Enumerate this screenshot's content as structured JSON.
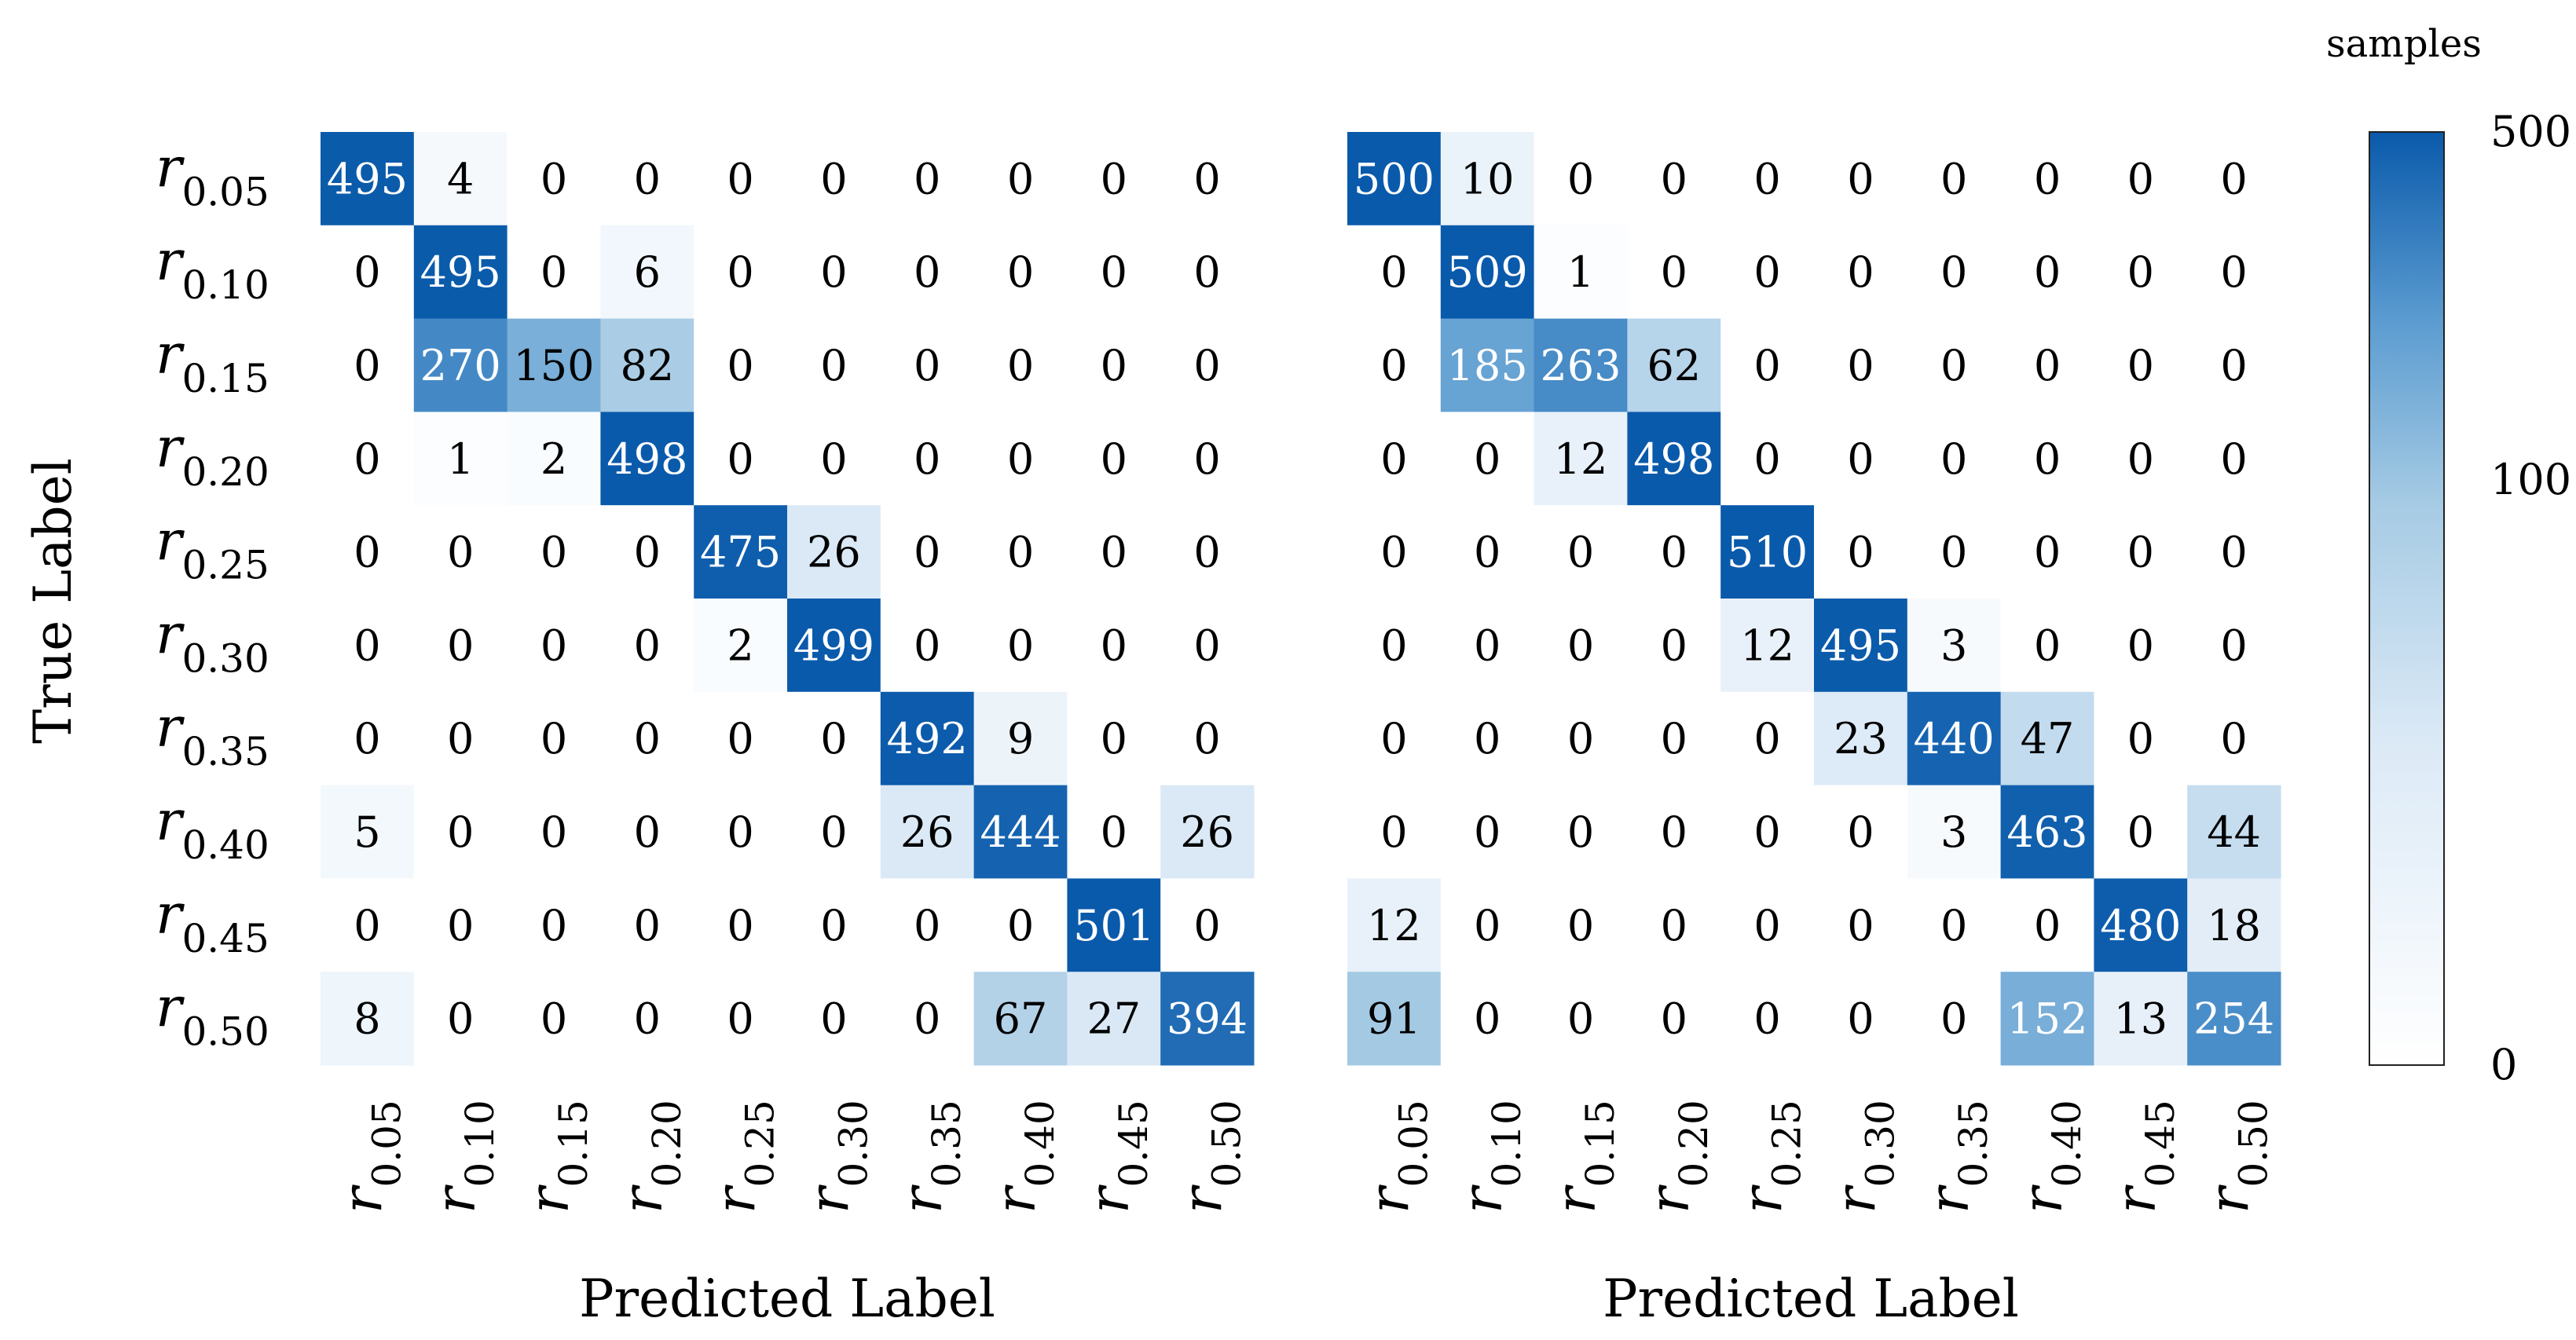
{
  "chart_data": [
    {
      "type": "heatmap",
      "ylabel": "True Label",
      "xlabel": "Predicted Label",
      "x_tick_labels": [
        "0.05",
        "0.10",
        "0.15",
        "0.20",
        "0.25",
        "0.30",
        "0.35",
        "0.40",
        "0.45",
        "0.50"
      ],
      "y_tick_labels": [
        "0.05",
        "0.10",
        "0.15",
        "0.20",
        "0.25",
        "0.30",
        "0.35",
        "0.40",
        "0.45",
        "0.50"
      ],
      "tick_symbol": "r",
      "values": [
        [
          495,
          4,
          0,
          0,
          0,
          0,
          0,
          0,
          0,
          0
        ],
        [
          0,
          495,
          0,
          6,
          0,
          0,
          0,
          0,
          0,
          0
        ],
        [
          0,
          270,
          150,
          82,
          0,
          0,
          0,
          0,
          0,
          0
        ],
        [
          0,
          1,
          2,
          498,
          0,
          0,
          0,
          0,
          0,
          0
        ],
        [
          0,
          0,
          0,
          0,
          475,
          26,
          0,
          0,
          0,
          0
        ],
        [
          0,
          0,
          0,
          0,
          2,
          499,
          0,
          0,
          0,
          0
        ],
        [
          0,
          0,
          0,
          0,
          0,
          0,
          492,
          9,
          0,
          0
        ],
        [
          5,
          0,
          0,
          0,
          0,
          0,
          26,
          444,
          0,
          26
        ],
        [
          0,
          0,
          0,
          0,
          0,
          0,
          0,
          0,
          501,
          0
        ],
        [
          8,
          0,
          0,
          0,
          0,
          0,
          0,
          67,
          27,
          394
        ]
      ]
    },
    {
      "type": "heatmap",
      "ylabel": "",
      "xlabel": "Predicted Label",
      "x_tick_labels": [
        "0.05",
        "0.10",
        "0.15",
        "0.20",
        "0.25",
        "0.30",
        "0.35",
        "0.40",
        "0.45",
        "0.50"
      ],
      "y_tick_labels": [],
      "tick_symbol": "r",
      "values": [
        [
          500,
          10,
          0,
          0,
          0,
          0,
          0,
          0,
          0,
          0
        ],
        [
          0,
          509,
          1,
          0,
          0,
          0,
          0,
          0,
          0,
          0
        ],
        [
          0,
          185,
          263,
          62,
          0,
          0,
          0,
          0,
          0,
          0
        ],
        [
          0,
          0,
          12,
          498,
          0,
          0,
          0,
          0,
          0,
          0
        ],
        [
          0,
          0,
          0,
          0,
          510,
          0,
          0,
          0,
          0,
          0
        ],
        [
          0,
          0,
          0,
          0,
          12,
          495,
          3,
          0,
          0,
          0
        ],
        [
          0,
          0,
          0,
          0,
          0,
          23,
          440,
          47,
          0,
          0
        ],
        [
          0,
          0,
          0,
          0,
          0,
          0,
          3,
          463,
          0,
          44
        ],
        [
          12,
          0,
          0,
          0,
          0,
          0,
          0,
          0,
          480,
          18
        ],
        [
          91,
          0,
          0,
          0,
          0,
          0,
          0,
          152,
          13,
          254
        ]
      ]
    }
  ],
  "colorbar": {
    "title": "samples",
    "ticks": [
      "500",
      "100",
      "0"
    ],
    "tick_values": [
      500,
      100,
      0
    ],
    "min": 0,
    "max": 500,
    "scale": "symlog",
    "color_low": "#f7fbff",
    "color_high": "#08519c"
  }
}
